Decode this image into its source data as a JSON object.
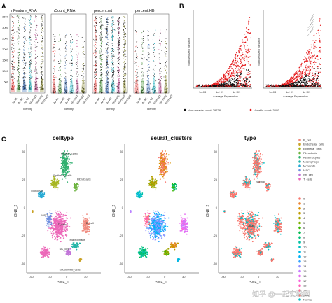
{
  "panel_labels": {
    "a": "A",
    "b": "B",
    "c": "C"
  },
  "panel_a": {
    "metric_titles": [
      "nFeature_RNA",
      "nCount_RNA",
      "percent.mt",
      "percent.HB"
    ],
    "x_axis_label": "Identity",
    "sample_groups": [
      "AAA1",
      "AAA2",
      "AAA3",
      "Normal1",
      "Normal2",
      "Normal3"
    ],
    "group_colors": [
      "#e8433e",
      "#4e9a3f",
      "#3b6fb6",
      "#25b4c4",
      "#c6599a",
      "#8a8a2e"
    ],
    "nfeature_ticks": [
      "500",
      "1000",
      "1500",
      "2000",
      "2500",
      "3000",
      "3500"
    ]
  },
  "panel_b": {
    "y_axis_label": "Standardized Variance",
    "x_axis_label": "Average Expression",
    "x_ticks": [
      "1e-03",
      "1e+01",
      "1e+01"
    ],
    "legend_nonvariable": "Non-variable count: 29738",
    "legend_variable": "Variable count: 3000",
    "variable_color": "#e41a1c",
    "nonvariable_color": "#111111"
  },
  "panel_c": {
    "plot_titles": [
      "celltype",
      "seurat_clusters",
      "type"
    ],
    "x_axis_label": "tSNE_1",
    "y_axis_label": "tSNE_2",
    "x_ticks": [
      "-60",
      "-30",
      "0",
      "30"
    ],
    "y_ticks": [
      "50",
      "25",
      "0",
      "-25",
      "-50"
    ],
    "celltype_annotations": [
      "Keratinocytes",
      "Epithelial_cells",
      "Fibroblasts",
      "Monocyte",
      "T_cells",
      "B_cell",
      "MSC",
      "Macrophage",
      "NK_cell",
      "Endothelial_cells"
    ],
    "type_annotations": [
      "Normal",
      "AAA"
    ],
    "celltype_legend": [
      {
        "label": "B_cell",
        "color": "#f08a7e"
      },
      {
        "label": "Endothelial_cells",
        "color": "#c9a227"
      },
      {
        "label": "Epithelial_cells",
        "color": "#a6b51f"
      },
      {
        "label": "Fibroblasts",
        "color": "#6cb33f"
      },
      {
        "label": "Keratinocytes",
        "color": "#2fb06f"
      },
      {
        "label": "Macrophage",
        "color": "#24b5a8"
      },
      {
        "label": "Monocyte",
        "color": "#22a9d4"
      },
      {
        "label": "MSC",
        "color": "#6f8fe0"
      },
      {
        "label": "NK_cell",
        "color": "#c074d8"
      },
      {
        "label": "T_cells",
        "color": "#ec67b8"
      }
    ],
    "cluster_legend": [
      {
        "label": "0",
        "color": "#f8766d"
      },
      {
        "label": "1",
        "color": "#ea8331"
      },
      {
        "label": "2",
        "color": "#d89000"
      },
      {
        "label": "3",
        "color": "#c09b00"
      },
      {
        "label": "4",
        "color": "#a3a500"
      },
      {
        "label": "5",
        "color": "#7cae00"
      },
      {
        "label": "6",
        "color": "#39b600"
      },
      {
        "label": "7",
        "color": "#00bb4e"
      },
      {
        "label": "8",
        "color": "#00bf7d"
      },
      {
        "label": "9",
        "color": "#00c1a3"
      },
      {
        "label": "10",
        "color": "#00bfc4"
      },
      {
        "label": "11",
        "color": "#00bae0"
      },
      {
        "label": "12",
        "color": "#00b0f6"
      },
      {
        "label": "13",
        "color": "#35a2ff"
      },
      {
        "label": "14",
        "color": "#9590ff"
      },
      {
        "label": "15",
        "color": "#c77cff"
      },
      {
        "label": "16",
        "color": "#e76bf3"
      },
      {
        "label": "17",
        "color": "#fa62db"
      },
      {
        "label": "18",
        "color": "#ff62bc"
      },
      {
        "label": "19",
        "color": "#ff6c91"
      }
    ],
    "type_legend": [
      {
        "label": "AAA",
        "color": "#f8766d"
      },
      {
        "label": "Normal",
        "color": "#00bfc4"
      }
    ]
  },
  "watermark": "知乎 @一起实验网"
}
